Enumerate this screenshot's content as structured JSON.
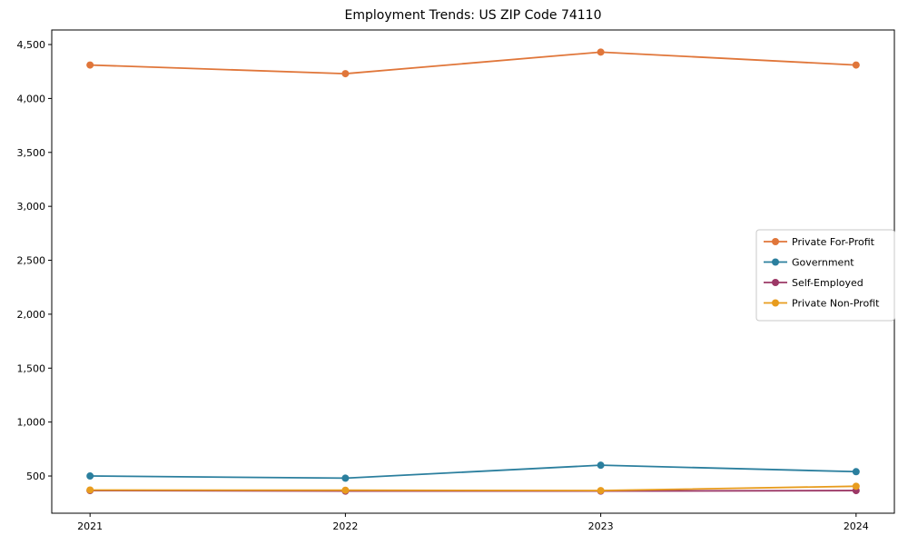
{
  "chart_data": {
    "type": "line",
    "title": "Employment Trends: US ZIP Code 74110",
    "x": [
      2021,
      2022,
      2023,
      2024
    ],
    "x_tick_labels": [
      "2021",
      "2022",
      "2023",
      "2024"
    ],
    "series": [
      {
        "name": "Private For-Profit",
        "color": "#e0763a",
        "values": [
          4310,
          4230,
          4430,
          4310
        ]
      },
      {
        "name": "Government",
        "color": "#2b7f9e",
        "values": [
          500,
          480,
          600,
          540
        ]
      },
      {
        "name": "Self-Employed",
        "color": "#9c3866",
        "values": [
          365,
          360,
          360,
          365
        ]
      },
      {
        "name": "Private Non-Profit",
        "color": "#e89c1e",
        "values": [
          370,
          368,
          365,
          405
        ]
      }
    ],
    "yticks": [
      500,
      1000,
      1500,
      2000,
      2500,
      3000,
      3500,
      4000,
      4500
    ],
    "ylim": [
      155,
      4635
    ],
    "xlim": [
      2020.85,
      2024.15
    ],
    "grid": false,
    "legend_position": "center-right",
    "marker": "circle"
  }
}
